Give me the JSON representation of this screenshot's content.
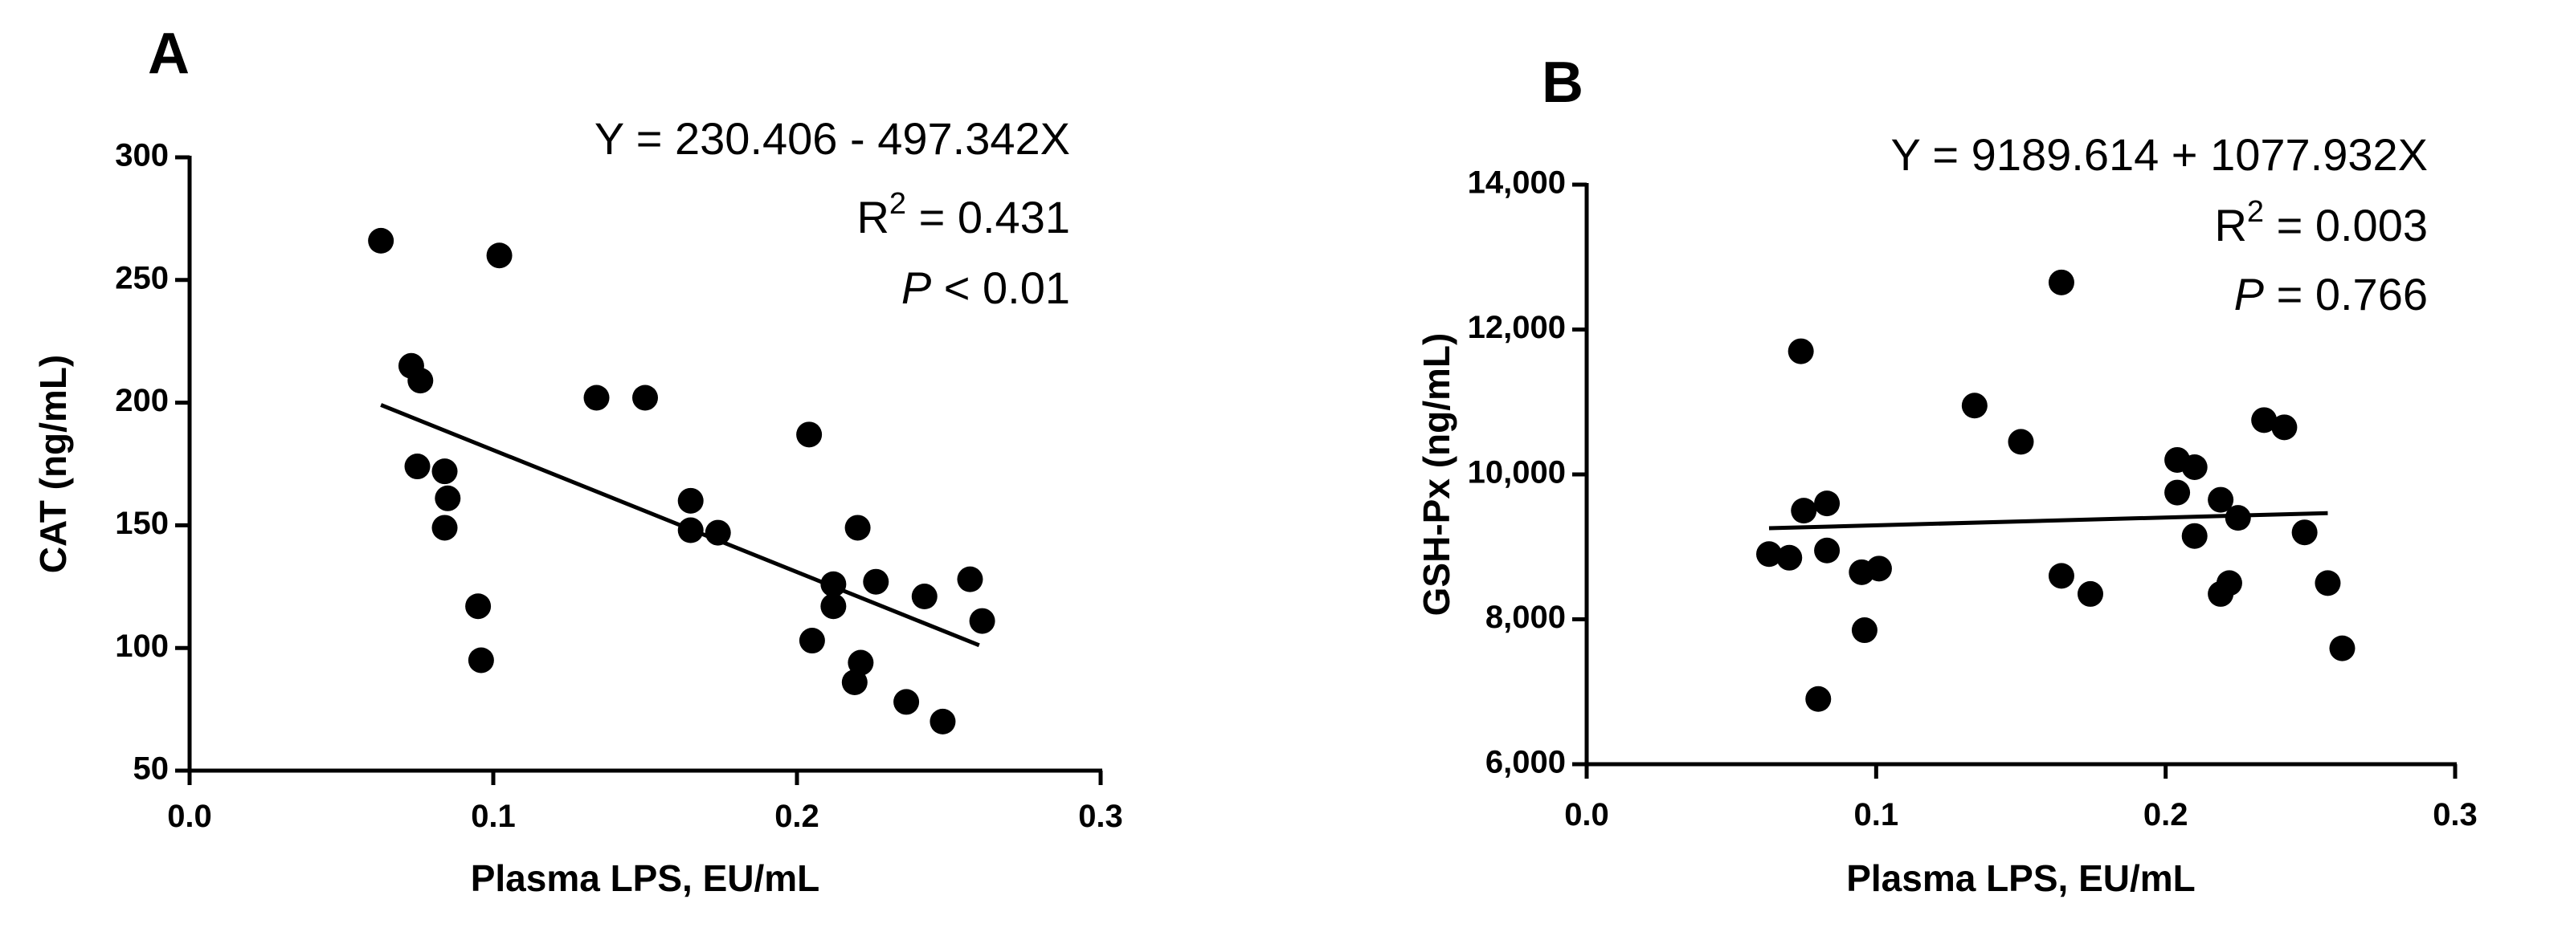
{
  "chart_data": [
    {
      "type": "scatter",
      "panel_label": "A",
      "xlabel": "Plasma LPS, EU/mL",
      "ylabel": "CAT (ng/mL)",
      "xlim": [
        0.0,
        0.3
      ],
      "ylim": [
        50,
        300
      ],
      "xticks": [
        0.0,
        0.1,
        0.2,
        0.3
      ],
      "xtick_labels": [
        "0.0",
        "0.1",
        "0.2",
        "0.3"
      ],
      "yticks": [
        50,
        100,
        150,
        200,
        250,
        300
      ],
      "ytick_labels": [
        "50",
        "100",
        "150",
        "200",
        "250",
        "300"
      ],
      "equation": "Y = 230.406 - 497.342X",
      "r2_prefix": "R",
      "r2_sup": "2",
      "r2_rest": " = 0.431",
      "p_italic": "P",
      "p_rest": " < 0.01",
      "regression": {
        "intercept": 230.406,
        "slope": -497.342,
        "x_range": [
          0.063,
          0.26
        ]
      },
      "points": [
        [
          0.063,
          266
        ],
        [
          0.102,
          260
        ],
        [
          0.073,
          215
        ],
        [
          0.076,
          209
        ],
        [
          0.075,
          174
        ],
        [
          0.084,
          172
        ],
        [
          0.085,
          161
        ],
        [
          0.084,
          149
        ],
        [
          0.095,
          117
        ],
        [
          0.096,
          95
        ],
        [
          0.134,
          202
        ],
        [
          0.15,
          202
        ],
        [
          0.165,
          160
        ],
        [
          0.165,
          148
        ],
        [
          0.174,
          147
        ],
        [
          0.204,
          187
        ],
        [
          0.205,
          103
        ],
        [
          0.22,
          149
        ],
        [
          0.212,
          126
        ],
        [
          0.212,
          117
        ],
        [
          0.226,
          127
        ],
        [
          0.221,
          94
        ],
        [
          0.219,
          86
        ],
        [
          0.236,
          78
        ],
        [
          0.242,
          121
        ],
        [
          0.248,
          70
        ],
        [
          0.257,
          128
        ],
        [
          0.261,
          111
        ]
      ]
    },
    {
      "type": "scatter",
      "panel_label": "B",
      "xlabel": "Plasma LPS, EU/mL",
      "ylabel": "GSH-Px (ng/mL)",
      "xlim": [
        0.0,
        0.3
      ],
      "ylim": [
        6000,
        14000
      ],
      "xticks": [
        0.0,
        0.1,
        0.2,
        0.3
      ],
      "xtick_labels": [
        "0.0",
        "0.1",
        "0.2",
        "0.3"
      ],
      "yticks": [
        6000,
        8000,
        10000,
        12000,
        14000
      ],
      "ytick_labels": [
        "6,000",
        "8,000",
        "10,000",
        "12,000",
        "14,000"
      ],
      "equation": "Y = 9189.614 + 1077.932X",
      "r2_prefix": "R",
      "r2_sup": "2",
      "r2_rest": " = 0.003",
      "p_italic": "P",
      "p_rest": " = 0.766",
      "regression": {
        "intercept": 9189.614,
        "slope": 1077.932,
        "x_range": [
          0.063,
          0.256
        ]
      },
      "points": [
        [
          0.063,
          8900
        ],
        [
          0.07,
          8850
        ],
        [
          0.074,
          11700
        ],
        [
          0.075,
          9500
        ],
        [
          0.08,
          6900
        ],
        [
          0.083,
          9600
        ],
        [
          0.083,
          8950
        ],
        [
          0.095,
          8650
        ],
        [
          0.096,
          7850
        ],
        [
          0.101,
          8700
        ],
        [
          0.134,
          10950
        ],
        [
          0.15,
          10450
        ],
        [
          0.164,
          12650
        ],
        [
          0.164,
          8600
        ],
        [
          0.174,
          8350
        ],
        [
          0.204,
          10200
        ],
        [
          0.204,
          9750
        ],
        [
          0.21,
          10100
        ],
        [
          0.21,
          9150
        ],
        [
          0.219,
          9650
        ],
        [
          0.219,
          8350
        ],
        [
          0.222,
          8500
        ],
        [
          0.225,
          9400
        ],
        [
          0.234,
          10750
        ],
        [
          0.241,
          10650
        ],
        [
          0.248,
          9200
        ],
        [
          0.256,
          8500
        ],
        [
          0.261,
          7600
        ]
      ]
    }
  ]
}
